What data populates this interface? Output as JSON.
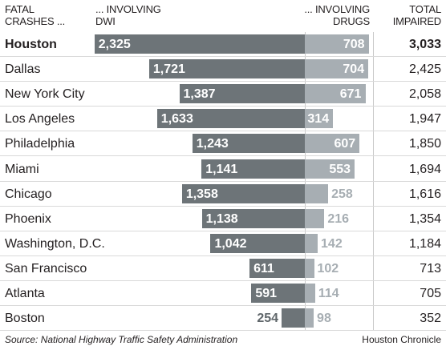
{
  "headers": {
    "city": [
      "FATAL",
      "CRASHES ..."
    ],
    "dwi": [
      "... INVOLVING",
      "DWI"
    ],
    "drugs": [
      "... INVOLVING",
      "DRUGS"
    ],
    "total": [
      "TOTAL",
      "IMPAIRED"
    ]
  },
  "chart_data": {
    "type": "bar",
    "categories": [
      "Houston",
      "Dallas",
      "New York City",
      "Los Angeles",
      "Philadelphia",
      "Miami",
      "Chicago",
      "Phoenix",
      "Washington, D.C.",
      "San Francisco",
      "Atlanta",
      "Boston"
    ],
    "series": [
      {
        "name": "... INVOLVING DWI",
        "values": [
          2325,
          1721,
          1387,
          1633,
          1243,
          1141,
          1358,
          1138,
          1042,
          611,
          591,
          254
        ]
      },
      {
        "name": "... INVOLVING DRUGS",
        "values": [
          708,
          704,
          671,
          314,
          607,
          553,
          258,
          216,
          142,
          102,
          114,
          98
        ]
      }
    ],
    "labels": {
      "dwi": [
        "2,325",
        "1,721",
        "1,387",
        "1,633",
        "1,243",
        "1,141",
        "1,358",
        "1,138",
        "1,042",
        "611",
        "591",
        "254"
      ],
      "drugs": [
        "708",
        "704",
        "671",
        "314",
        "607",
        "553",
        "258",
        "216",
        "142",
        "102",
        "114",
        "98"
      ],
      "total": [
        "3,033",
        "2,425",
        "2,058",
        "1,947",
        "1,850",
        "1,694",
        "1,616",
        "1,354",
        "1,184",
        "713",
        "705",
        "352"
      ]
    },
    "highlight": "Houston",
    "colors": {
      "dwi": "#6d7478",
      "drugs": "#a7aeb3"
    }
  },
  "footer": {
    "source": "Source: National Highway Traffic Safety Administration",
    "credit": "Houston Chronicle"
  }
}
